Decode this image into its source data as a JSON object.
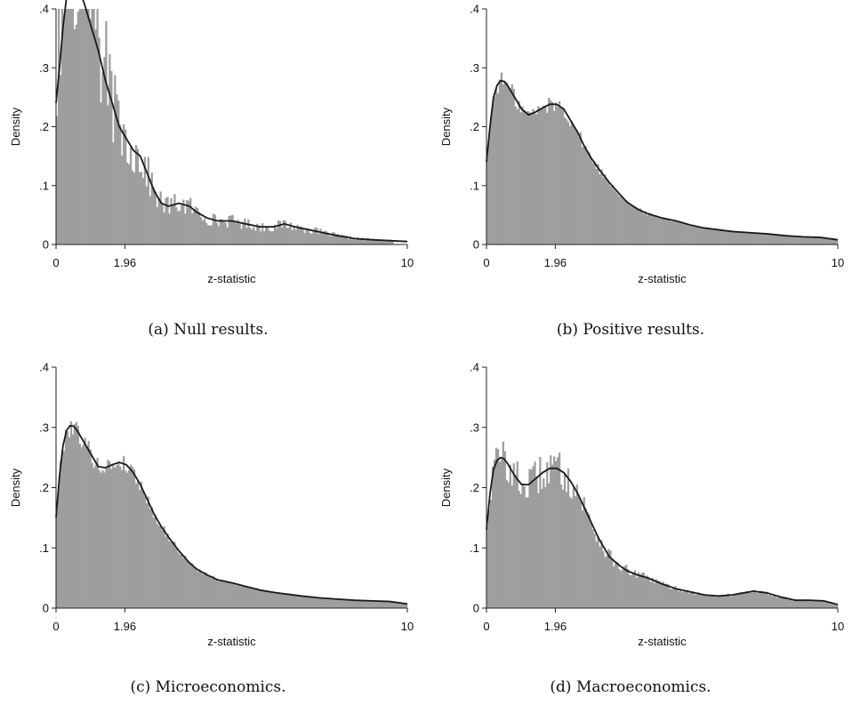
{
  "chart_data": [
    {
      "type": "bar",
      "caption": "(a) Null results.",
      "xlabel": "z-statistic",
      "ylabel": "Density",
      "xlim": [
        0,
        10
      ],
      "ylim": [
        0,
        0.4
      ],
      "xticks": [
        {
          "v": 0,
          "label": "0"
        },
        {
          "v": 1.96,
          "label": "1.96"
        },
        {
          "v": 10,
          "label": "10"
        }
      ],
      "yticks": [
        {
          "v": 0,
          "label": "0"
        },
        {
          "v": 0.1,
          "label": ".1"
        },
        {
          "v": 0.2,
          "label": ".2"
        },
        {
          "v": 0.3,
          "label": ".3"
        },
        {
          "v": 0.4,
          "label": ".4"
        }
      ],
      "kde": [
        [
          0,
          0.24
        ],
        [
          0.1,
          0.3
        ],
        [
          0.2,
          0.37
        ],
        [
          0.3,
          0.42
        ],
        [
          0.4,
          0.44
        ],
        [
          0.5,
          0.45
        ],
        [
          0.6,
          0.44
        ],
        [
          0.8,
          0.41
        ],
        [
          1.0,
          0.37
        ],
        [
          1.2,
          0.33
        ],
        [
          1.4,
          0.28
        ],
        [
          1.6,
          0.24
        ],
        [
          1.8,
          0.2
        ],
        [
          2.0,
          0.18
        ],
        [
          2.2,
          0.16
        ],
        [
          2.4,
          0.15
        ],
        [
          2.6,
          0.12
        ],
        [
          2.8,
          0.09
        ],
        [
          3.0,
          0.07
        ],
        [
          3.2,
          0.065
        ],
        [
          3.5,
          0.07
        ],
        [
          3.8,
          0.065
        ],
        [
          4.0,
          0.055
        ],
        [
          4.3,
          0.045
        ],
        [
          4.6,
          0.04
        ],
        [
          5.0,
          0.04
        ],
        [
          5.4,
          0.035
        ],
        [
          5.8,
          0.03
        ],
        [
          6.2,
          0.03
        ],
        [
          6.5,
          0.035
        ],
        [
          6.8,
          0.03
        ],
        [
          7.2,
          0.025
        ],
        [
          7.6,
          0.02
        ],
        [
          8.0,
          0.015
        ],
        [
          8.5,
          0.01
        ],
        [
          9.0,
          0.008
        ],
        [
          10.0,
          0.005
        ]
      ],
      "noise": 0.28,
      "bar_end": 9.6
    },
    {
      "type": "bar",
      "caption": "(b) Positive results.",
      "xlabel": "z-statistic",
      "ylabel": "Density",
      "xlim": [
        0,
        10
      ],
      "ylim": [
        0,
        0.4
      ],
      "xticks": [
        {
          "v": 0,
          "label": "0"
        },
        {
          "v": 1.96,
          "label": "1.96"
        },
        {
          "v": 10,
          "label": "10"
        }
      ],
      "yticks": [
        {
          "v": 0,
          "label": "0"
        },
        {
          "v": 0.1,
          "label": ".1"
        },
        {
          "v": 0.2,
          "label": ".2"
        },
        {
          "v": 0.3,
          "label": ".3"
        },
        {
          "v": 0.4,
          "label": ".4"
        }
      ],
      "kde": [
        [
          0,
          0.14
        ],
        [
          0.1,
          0.2
        ],
        [
          0.2,
          0.25
        ],
        [
          0.3,
          0.27
        ],
        [
          0.4,
          0.278
        ],
        [
          0.5,
          0.277
        ],
        [
          0.6,
          0.27
        ],
        [
          0.8,
          0.25
        ],
        [
          1.0,
          0.23
        ],
        [
          1.2,
          0.22
        ],
        [
          1.4,
          0.225
        ],
        [
          1.6,
          0.232
        ],
        [
          1.8,
          0.238
        ],
        [
          2.0,
          0.238
        ],
        [
          2.2,
          0.23
        ],
        [
          2.4,
          0.21
        ],
        [
          2.6,
          0.19
        ],
        [
          2.8,
          0.165
        ],
        [
          3.0,
          0.145
        ],
        [
          3.2,
          0.128
        ],
        [
          3.5,
          0.105
        ],
        [
          3.8,
          0.085
        ],
        [
          4.0,
          0.072
        ],
        [
          4.3,
          0.06
        ],
        [
          4.6,
          0.052
        ],
        [
          5.0,
          0.045
        ],
        [
          5.4,
          0.04
        ],
        [
          5.8,
          0.033
        ],
        [
          6.2,
          0.028
        ],
        [
          6.6,
          0.025
        ],
        [
          7.0,
          0.022
        ],
        [
          7.5,
          0.02
        ],
        [
          8.0,
          0.018
        ],
        [
          8.5,
          0.015
        ],
        [
          9.0,
          0.013
        ],
        [
          9.5,
          0.012
        ],
        [
          10.0,
          0.008
        ]
      ],
      "noise": 0.06,
      "bar_end": 10.0
    },
    {
      "type": "bar",
      "caption": "(c) Microeconomics.",
      "xlabel": "z-statistic",
      "ylabel": "Density",
      "xlim": [
        0,
        10
      ],
      "ylim": [
        0,
        0.4
      ],
      "xticks": [
        {
          "v": 0,
          "label": "0"
        },
        {
          "v": 1.96,
          "label": "1.96"
        },
        {
          "v": 10,
          "label": "10"
        }
      ],
      "yticks": [
        {
          "v": 0,
          "label": "0"
        },
        {
          "v": 0.1,
          "label": ".1"
        },
        {
          "v": 0.2,
          "label": ".2"
        },
        {
          "v": 0.3,
          "label": ".3"
        },
        {
          "v": 0.4,
          "label": ".4"
        }
      ],
      "kde": [
        [
          0,
          0.15
        ],
        [
          0.1,
          0.22
        ],
        [
          0.2,
          0.27
        ],
        [
          0.3,
          0.295
        ],
        [
          0.4,
          0.303
        ],
        [
          0.5,
          0.302
        ],
        [
          0.6,
          0.295
        ],
        [
          0.8,
          0.275
        ],
        [
          1.0,
          0.255
        ],
        [
          1.2,
          0.235
        ],
        [
          1.4,
          0.233
        ],
        [
          1.6,
          0.238
        ],
        [
          1.8,
          0.242
        ],
        [
          2.0,
          0.238
        ],
        [
          2.2,
          0.225
        ],
        [
          2.4,
          0.205
        ],
        [
          2.6,
          0.18
        ],
        [
          2.8,
          0.155
        ],
        [
          3.0,
          0.135
        ],
        [
          3.2,
          0.118
        ],
        [
          3.5,
          0.095
        ],
        [
          3.8,
          0.075
        ],
        [
          4.0,
          0.065
        ],
        [
          4.3,
          0.055
        ],
        [
          4.6,
          0.047
        ],
        [
          5.0,
          0.042
        ],
        [
          5.4,
          0.036
        ],
        [
          5.8,
          0.03
        ],
        [
          6.2,
          0.026
        ],
        [
          6.6,
          0.023
        ],
        [
          7.0,
          0.02
        ],
        [
          7.5,
          0.017
        ],
        [
          8.0,
          0.015
        ],
        [
          8.5,
          0.013
        ],
        [
          9.0,
          0.012
        ],
        [
          9.5,
          0.011
        ],
        [
          10.0,
          0.007
        ]
      ],
      "noise": 0.06,
      "bar_end": 10.0
    },
    {
      "type": "bar",
      "caption": "(d) Macroeconomics.",
      "xlabel": "z-statistic",
      "ylabel": "Density",
      "xlim": [
        0,
        10
      ],
      "ylim": [
        0,
        0.4
      ],
      "xticks": [
        {
          "v": 0,
          "label": "0"
        },
        {
          "v": 1.96,
          "label": "1.96"
        },
        {
          "v": 10,
          "label": "10"
        }
      ],
      "yticks": [
        {
          "v": 0,
          "label": "0"
        },
        {
          "v": 0.1,
          "label": ".1"
        },
        {
          "v": 0.2,
          "label": ".2"
        },
        {
          "v": 0.3,
          "label": ".3"
        },
        {
          "v": 0.4,
          "label": ".4"
        }
      ],
      "kde": [
        [
          0,
          0.13
        ],
        [
          0.1,
          0.19
        ],
        [
          0.2,
          0.23
        ],
        [
          0.3,
          0.245
        ],
        [
          0.4,
          0.25
        ],
        [
          0.5,
          0.248
        ],
        [
          0.6,
          0.24
        ],
        [
          0.8,
          0.22
        ],
        [
          1.0,
          0.205
        ],
        [
          1.2,
          0.205
        ],
        [
          1.4,
          0.215
        ],
        [
          1.6,
          0.225
        ],
        [
          1.8,
          0.232
        ],
        [
          2.0,
          0.232
        ],
        [
          2.2,
          0.225
        ],
        [
          2.4,
          0.21
        ],
        [
          2.6,
          0.19
        ],
        [
          2.8,
          0.165
        ],
        [
          3.0,
          0.14
        ],
        [
          3.2,
          0.115
        ],
        [
          3.5,
          0.085
        ],
        [
          3.8,
          0.07
        ],
        [
          4.0,
          0.062
        ],
        [
          4.3,
          0.055
        ],
        [
          4.6,
          0.05
        ],
        [
          5.0,
          0.04
        ],
        [
          5.4,
          0.032
        ],
        [
          5.8,
          0.027
        ],
        [
          6.2,
          0.022
        ],
        [
          6.6,
          0.02
        ],
        [
          7.0,
          0.022
        ],
        [
          7.3,
          0.025
        ],
        [
          7.6,
          0.028
        ],
        [
          8.0,
          0.025
        ],
        [
          8.4,
          0.018
        ],
        [
          8.8,
          0.013
        ],
        [
          9.2,
          0.013
        ],
        [
          9.6,
          0.012
        ],
        [
          10.0,
          0.006
        ]
      ],
      "noise": 0.14,
      "bar_end": 10.0
    }
  ],
  "colors": {
    "bars": "#9e9e9e",
    "bar_stroke": "#c8c8c8",
    "kde": "#1a1a1a",
    "axis": "#222222"
  }
}
